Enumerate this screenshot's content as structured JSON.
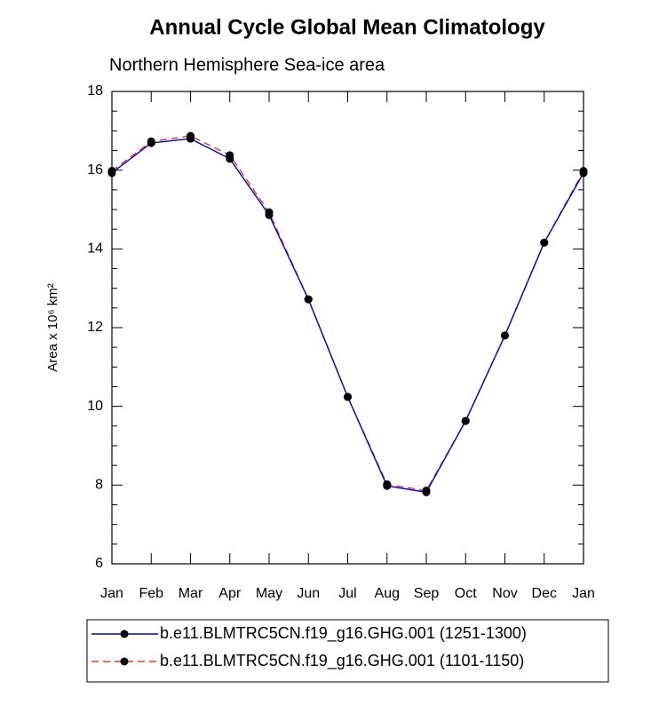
{
  "chart_data": {
    "type": "line",
    "title": "Annual Cycle Global Mean Climatology",
    "subtitle": "Northern Hemisphere Sea-ice area",
    "ylabel": "Area x 10⁶ km²",
    "categories": [
      "Jan",
      "Feb",
      "Mar",
      "Apr",
      "May",
      "Jun",
      "Jul",
      "Aug",
      "Sep",
      "Oct",
      "Nov",
      "Dec",
      "Jan"
    ],
    "series": [
      {
        "name": "b.e11.BLMTRC5CN.f19_g16.GHG.001 (1251-1300)",
        "color": "#0000cc",
        "dash": "none",
        "marker_color": "#000000",
        "values": [
          15.93,
          16.69,
          16.8,
          16.29,
          14.86,
          12.72,
          10.24,
          7.98,
          7.82,
          9.63,
          11.8,
          14.16,
          15.93
        ]
      },
      {
        "name": "b.e11.BLMTRC5CN.f19_g16.GHG.001 (1101-1150)",
        "color": "#e8362e",
        "dash": "8 5",
        "marker_color": "#000000",
        "values": [
          15.98,
          16.73,
          16.87,
          16.38,
          14.93,
          12.72,
          10.24,
          8.02,
          7.86,
          9.63,
          11.8,
          14.16,
          15.98
        ]
      }
    ],
    "ylim": [
      6,
      18
    ],
    "yticks": [
      6,
      8,
      10,
      12,
      14,
      16,
      18
    ]
  }
}
